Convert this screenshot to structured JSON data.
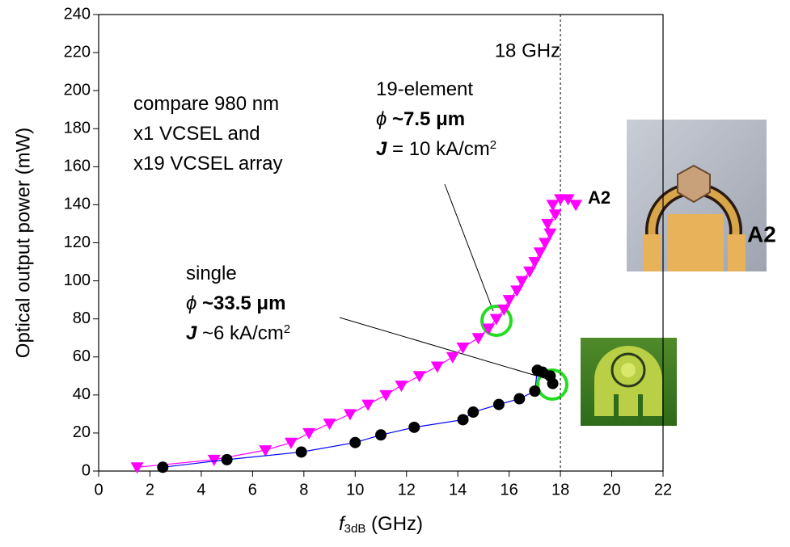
{
  "chart_data": {
    "type": "scatter",
    "xlim": [
      0,
      22
    ],
    "ylim": [
      0,
      240
    ],
    "xticks": [
      0,
      2,
      4,
      6,
      8,
      10,
      12,
      14,
      16,
      18,
      20,
      22
    ],
    "yticks": [
      0,
      20,
      40,
      60,
      80,
      100,
      120,
      140,
      160,
      180,
      200,
      220,
      240
    ],
    "y_label": "Optical output power (mW)",
    "x_label": [
      {
        "text": "f",
        "style": "italic"
      },
      {
        "text": "3dB",
        "style": "subscript"
      },
      {
        "text": " (GHz)",
        "style": "normal"
      }
    ],
    "vline": {
      "x": 18,
      "label": "18 GHz",
      "color": "#000000"
    },
    "series": [
      {
        "marker": "triangle-down",
        "color": "#ff00ff",
        "line_color": "#ff00ff",
        "x": [
          1.5,
          4.5,
          6.5,
          7.5,
          8.2,
          9.0,
          9.8,
          10.5,
          11.2,
          11.8,
          12.5,
          13.2,
          13.8,
          14.2,
          14.8,
          15.2,
          15.5,
          15.8,
          16.0,
          16.3,
          16.5,
          16.8,
          17.0,
          17.2,
          17.4,
          17.6,
          17.5,
          17.8,
          17.7,
          18.0,
          18.3,
          18.6
        ],
        "values": [
          2,
          6,
          11,
          15,
          20,
          25,
          30,
          35,
          40,
          45,
          50,
          55,
          60,
          65,
          70,
          75,
          80,
          85,
          90,
          95,
          100,
          105,
          110,
          115,
          120,
          125,
          130,
          135,
          140,
          143,
          143,
          140
        ]
      },
      {
        "marker": "circle",
        "color": "#000000",
        "line_color": "#0000ff",
        "x": [
          2.5,
          5.0,
          7.9,
          10.0,
          11.0,
          12.3,
          14.2,
          14.6,
          15.6,
          16.4,
          17.0,
          17.1,
          17.3,
          17.6,
          17.7
        ],
        "values": [
          2,
          6,
          10,
          15,
          19,
          23,
          27,
          31,
          35,
          38,
          42,
          53,
          52,
          50,
          46
        ]
      }
    ],
    "annotations": [
      {
        "lines": [
          [
            {
              "text": "compare 980 nm",
              "style": "normal"
            }
          ],
          [
            {
              "text": "x1 VCSEL and",
              "style": "normal"
            }
          ],
          [
            {
              "text": "x19 VCSEL array",
              "style": "normal"
            }
          ]
        ]
      },
      {
        "lines": [
          [
            {
              "text": "19-element",
              "style": "normal"
            }
          ],
          [
            {
              "text": "ϕ",
              "style": "italic"
            },
            {
              "text": " ~7.5 μm",
              "style": "bold"
            }
          ],
          [
            {
              "text": "J",
              "style": "bold-italic"
            },
            {
              "text": " = 10 kA/cm",
              "style": "normal"
            },
            {
              "text": "2",
              "style": "superscript"
            }
          ]
        ]
      },
      {
        "lines": [
          [
            {
              "text": "single",
              "style": "normal"
            }
          ],
          [
            {
              "text": "ϕ",
              "style": "italic"
            },
            {
              "text": " ~33.5 μm",
              "style": "bold"
            }
          ],
          [
            {
              "text": "J",
              "style": "bold-italic"
            },
            {
              "text": " ~6 kA/cm",
              "style": "normal"
            },
            {
              "text": "2",
              "style": "superscript"
            }
          ]
        ]
      }
    ],
    "series_label": {
      "text": "A2",
      "color": "#ff00ff"
    },
    "photo_label": "A2"
  }
}
